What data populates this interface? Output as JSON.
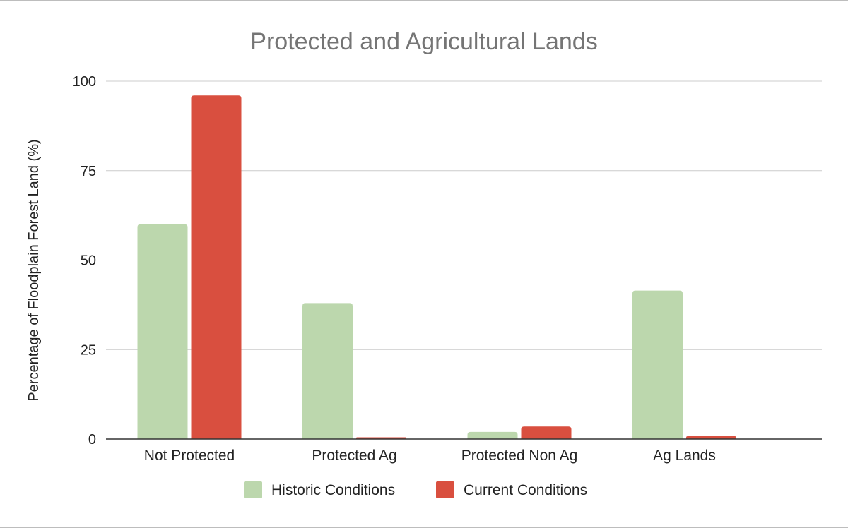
{
  "chart_data": {
    "type": "bar",
    "title": "Protected and Agricultural Lands",
    "xlabel": "",
    "ylabel": "Percentage of Floodplain Forest Land (%)",
    "ylim": [
      0,
      100
    ],
    "yticks": [
      "0",
      "25",
      "50",
      "75",
      "100"
    ],
    "grid": true,
    "legend_position": "bottom",
    "categories": [
      "Not Protected",
      "Protected Ag",
      "Protected Non Ag",
      "Ag Lands"
    ],
    "series": [
      {
        "name": "Historic Conditions",
        "color": "#bcd7ad",
        "values": [
          60,
          38,
          2,
          41.5
        ]
      },
      {
        "name": "Current Conditions",
        "color": "#d94f3f",
        "values": [
          96,
          0.5,
          3.5,
          0.8
        ]
      }
    ]
  }
}
